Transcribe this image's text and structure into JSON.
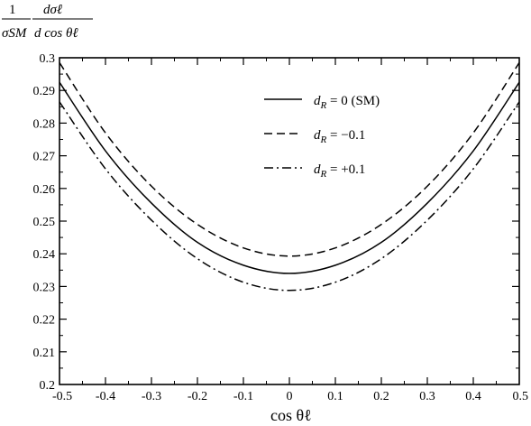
{
  "chart_data": {
    "type": "line",
    "title": "",
    "ylabel": {
      "numerator": "1",
      "denominator": "σSM",
      "numerator2": "dσℓ",
      "denominator2": "d cos θℓ"
    },
    "xlabel": "cos θℓ",
    "xlim": [
      -0.5,
      0.5
    ],
    "ylim": [
      0.2,
      0.3
    ],
    "x_ticks": [
      "-0.5",
      "-0.4",
      "-0.3",
      "-0.2",
      "-0.1",
      "0",
      "0.1",
      "0.2",
      "0.3",
      "0.4",
      "0.5"
    ],
    "y_ticks": [
      "0.2",
      "0.21",
      "0.22",
      "0.23",
      "0.24",
      "0.25",
      "0.26",
      "0.27",
      "0.28",
      "0.29",
      "0.3"
    ],
    "grid": false,
    "legend_position": "top-right",
    "series": [
      {
        "name": "dR = 0 (SM)",
        "style": "solid",
        "x": [
          -0.5,
          -0.4,
          -0.3,
          -0.2,
          -0.1,
          0,
          0.1,
          0.2,
          0.3,
          0.4,
          0.5
        ],
        "y": [
          0.2925,
          0.2715,
          0.2555,
          0.2435,
          0.2365,
          0.234,
          0.2365,
          0.2435,
          0.2555,
          0.2715,
          0.2925
        ]
      },
      {
        "name": "dR = −0.1",
        "style": "dashed",
        "x": [
          -0.5,
          -0.4,
          -0.3,
          -0.2,
          -0.1,
          0,
          0.1,
          0.2,
          0.3,
          0.4,
          0.5
        ],
        "y": [
          0.2985,
          0.277,
          0.2607,
          0.249,
          0.2418,
          0.2393,
          0.2418,
          0.249,
          0.2607,
          0.277,
          0.2985
        ]
      },
      {
        "name": "dR = +0.1",
        "style": "dashdot",
        "x": [
          -0.5,
          -0.4,
          -0.3,
          -0.2,
          -0.1,
          0,
          0.1,
          0.2,
          0.3,
          0.4,
          0.5
        ],
        "y": [
          0.2865,
          0.266,
          0.2503,
          0.2385,
          0.2313,
          0.2288,
          0.2313,
          0.2385,
          0.2503,
          0.266,
          0.2865
        ]
      }
    ],
    "legend": [
      {
        "label_var": "d",
        "label_sub": "R",
        "label_rest": " = 0 (SM)"
      },
      {
        "label_var": "d",
        "label_sub": "R",
        "label_rest": " = −0.1"
      },
      {
        "label_var": "d",
        "label_sub": "R",
        "label_rest": " = +0.1"
      }
    ]
  }
}
